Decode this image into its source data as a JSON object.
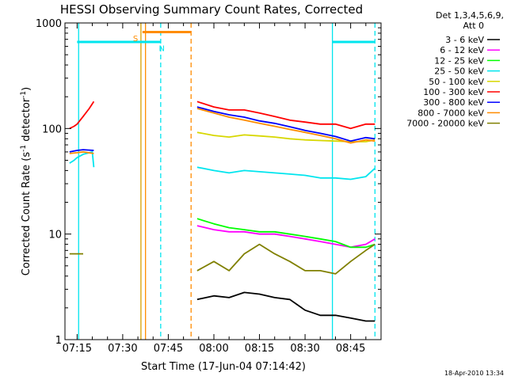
{
  "chart_data": {
    "type": "line",
    "title": "HESSI Observing Summary Count Rates, Corrected",
    "xlabel": "Start Time (17-Jun-04 07:14:42)",
    "ylabel": "Corrected Count Rate (s",
    "ylabel_sup1": "-1",
    "ylabel_mid": " detector",
    "ylabel_sup2": "-1",
    "ylabel_end": ")",
    "yscale": "log",
    "ylim": [
      1,
      1000
    ],
    "xlim_minutes": [
      7.2,
      9.0
    ],
    "x_ticks": [
      "07:15",
      "07:30",
      "07:45",
      "08:00",
      "08:15",
      "08:30",
      "08:45"
    ],
    "y_ticks": [
      "1",
      "10",
      "100",
      "1000"
    ],
    "timestamp": "18-Apr-2010 13:34",
    "legend": {
      "title_line1": "Det 1,3,4,5,6,9,",
      "title_line2": "Att 0",
      "entries": [
        {
          "label": "3 - 6 keV",
          "color": "#000000"
        },
        {
          "label": "6 - 12 keV",
          "color": "#ff00ff"
        },
        {
          "label": "12 - 25 keV",
          "color": "#00ff00"
        },
        {
          "label": "25 - 50 keV",
          "color": "#00e5ee"
        },
        {
          "label": "50 - 100 keV",
          "color": "#d7d700"
        },
        {
          "label": "100 - 300 keV",
          "color": "#ff0000"
        },
        {
          "label": "300 - 800 keV",
          "color": "#0000ff"
        },
        {
          "label": "800 - 7000 keV",
          "color": "#ff8c00"
        },
        {
          "label": "7000 - 20000 keV",
          "color": "#808000"
        }
      ]
    },
    "annotations": [
      {
        "text": "S",
        "x": 21.5,
        "y": 720,
        "color": "#ff8c00"
      },
      {
        "text": "N",
        "x": 30.0,
        "y": 580,
        "color": "#00e5ee"
      }
    ],
    "segments": [
      {
        "x0": 21.5,
        "x1": 37.5,
        "y": 820,
        "color": "#ff8c00",
        "style": "solid"
      },
      {
        "x0": 0.0,
        "x1": 27.5,
        "y": 660,
        "color": "#00e5ee",
        "style": "solid"
      },
      {
        "x0": 84.0,
        "x1": 98.0,
        "y": 660,
        "color": "#00e5ee",
        "style": "solid"
      }
    ],
    "vlines": [
      {
        "x": 0.5,
        "color": "#00e5ee",
        "style": "solid"
      },
      {
        "x": 21.0,
        "color": "#d7a000",
        "style": "solid"
      },
      {
        "x": 22.5,
        "color": "#ff8c00",
        "style": "solid"
      },
      {
        "x": 27.5,
        "color": "#00e5ee",
        "style": "dash"
      },
      {
        "x": 37.5,
        "color": "#ff8c00",
        "style": "dash"
      },
      {
        "x": 84.0,
        "color": "#00e5ee",
        "style": "solid"
      },
      {
        "x": 98.0,
        "color": "#00e5ee",
        "style": "dash"
      }
    ],
    "series": [
      {
        "name": "3 - 6 keV",
        "color": "#000000",
        "x": [
          39.5,
          45,
          50,
          55,
          60,
          65,
          70,
          75,
          80,
          85,
          90,
          95,
          98
        ],
        "y": [
          2.4,
          2.6,
          2.5,
          2.8,
          2.7,
          2.5,
          2.4,
          1.9,
          1.7,
          1.7,
          1.6,
          1.5,
          1.5
        ]
      },
      {
        "name": "6 - 12 keV",
        "color": "#ff00ff",
        "x": [
          39.5,
          45,
          50,
          55,
          60,
          65,
          70,
          75,
          80,
          85,
          90,
          95,
          98
        ],
        "y": [
          12,
          11,
          10.5,
          10.5,
          10,
          10,
          9.5,
          9,
          8.5,
          8,
          7.5,
          8,
          9
        ]
      },
      {
        "name": "12 - 25 keV",
        "color": "#00ff00",
        "x": [
          39.5,
          45,
          50,
          55,
          60,
          65,
          70,
          75,
          80,
          85,
          90,
          95,
          98
        ],
        "y": [
          14,
          12.5,
          11.5,
          11,
          10.5,
          10.5,
          10,
          9.5,
          9,
          8.5,
          7.5,
          7.5,
          8
        ]
      },
      {
        "name": "25 - 50 keV",
        "color": "#00e5ee",
        "x": [
          -2.5,
          -1,
          0,
          2,
          5,
          5.5,
          39.5,
          45,
          50,
          55,
          60,
          65,
          70,
          75,
          80,
          85,
          90,
          95,
          98
        ],
        "y": [
          47,
          50,
          53,
          57,
          60,
          43,
          43,
          40,
          38,
          40,
          39,
          38,
          37,
          36,
          34,
          34,
          33,
          35,
          42
        ]
      },
      {
        "name": "50 - 100 keV",
        "color": "#d7d700",
        "x": [
          39.5,
          45,
          50,
          55,
          60,
          65,
          70,
          75,
          80,
          85,
          90,
          95,
          98
        ],
        "y": [
          92,
          86,
          83,
          87,
          85,
          83,
          80,
          78,
          77,
          76,
          75,
          75,
          78
        ]
      },
      {
        "name": "100 - 300 keV",
        "color": "#ff0000",
        "x": [
          -2.5,
          -1,
          0,
          2,
          4,
          5.5,
          39.5,
          45,
          50,
          55,
          60,
          65,
          70,
          75,
          80,
          85,
          90,
          95,
          98
        ],
        "y": [
          100,
          105,
          110,
          130,
          155,
          180,
          180,
          160,
          150,
          150,
          140,
          130,
          120,
          115,
          110,
          110,
          100,
          110,
          110
        ]
      },
      {
        "name": "300 - 800 keV",
        "color": "#0000ff",
        "x": [
          -2.5,
          0,
          2,
          5.5,
          39.5,
          45,
          50,
          55,
          60,
          65,
          70,
          75,
          80,
          85,
          90,
          95,
          98
        ],
        "y": [
          60,
          62,
          63,
          62,
          160,
          145,
          135,
          128,
          118,
          112,
          104,
          96,
          90,
          84,
          76,
          82,
          80
        ]
      },
      {
        "name": "800 - 7000 keV",
        "color": "#ff8c00",
        "x": [
          -2.5,
          0,
          2,
          5.5,
          39.5,
          45,
          50,
          55,
          60,
          65,
          70,
          75,
          80,
          85,
          90,
          95,
          98
        ],
        "y": [
          58,
          59,
          60,
          58,
          155,
          140,
          128,
          120,
          112,
          105,
          98,
          92,
          86,
          80,
          73,
          78,
          76
        ]
      },
      {
        "name": "7000 - 20000 keV",
        "color": "#808000",
        "x": [
          -2.5,
          0,
          2,
          39.5,
          45,
          50,
          55,
          60,
          65,
          70,
          75,
          80,
          85,
          90,
          95,
          98
        ],
        "y": [
          6.5,
          6.5,
          6.5,
          4.5,
          5.5,
          4.5,
          6.5,
          8,
          6.5,
          5.5,
          4.5,
          4.5,
          4.2,
          5.5,
          7,
          8
        ]
      }
    ]
  }
}
